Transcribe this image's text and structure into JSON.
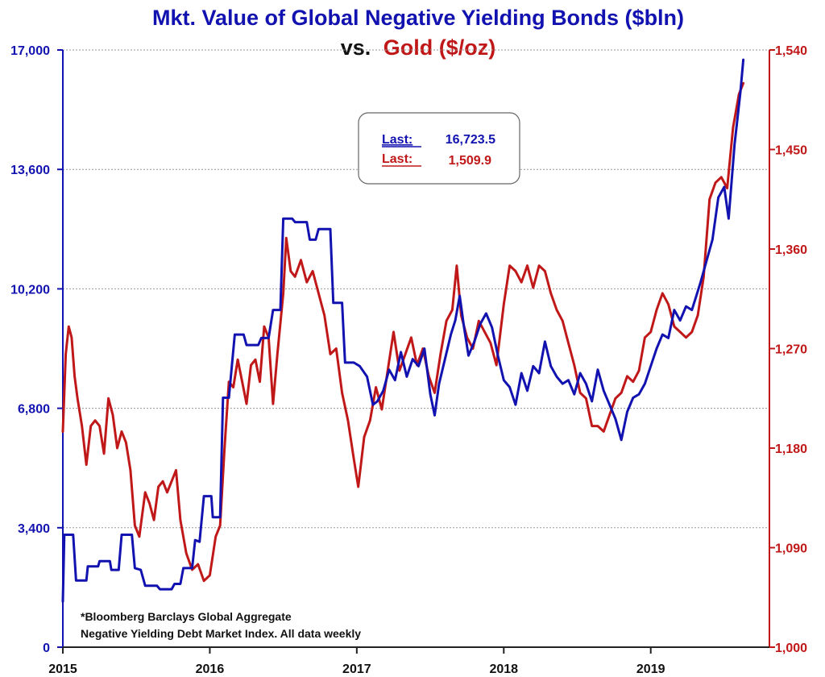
{
  "chart_data": {
    "type": "line",
    "title": "Mkt. Value of Global Negative Yielding Bonds ($bln)",
    "subtitle_prefix": "vs.",
    "subtitle_series": "Gold ($/oz)",
    "colors": {
      "bonds": "#1212b0",
      "gold": "#c01818",
      "grid": "#9a9a9a"
    },
    "x_ticks": [
      "2015",
      "2016",
      "2017",
      "2018",
      "2019"
    ],
    "x_tick_values": [
      2015.0,
      2016.0,
      2017.0,
      2018.0,
      2019.0
    ],
    "xlim": [
      2015.0,
      2019.78
    ],
    "y_left": {
      "lim": [
        0,
        17000
      ],
      "ticks": [
        0,
        3400,
        6800,
        10200,
        13600,
        17000
      ],
      "tick_labels": [
        "0",
        "3,400",
        "6,800",
        "10,200",
        "13,600",
        "17,000"
      ]
    },
    "y_right": {
      "lim": [
        1000,
        1540
      ],
      "ticks": [
        1000,
        1090,
        1180,
        1270,
        1360,
        1450,
        1540
      ],
      "tick_labels": [
        "1,000",
        "1,090",
        "1,180",
        "1,270",
        "1,360",
        "1,450",
        "1,540"
      ]
    },
    "grid": true,
    "legend_box": {
      "rows": [
        {
          "label": "Last:",
          "value": "16,723.5"
        },
        {
          "label": "Last:",
          "value": "1,509.9"
        }
      ]
    },
    "footnote": [
      "*Bloomberg Barclays Global Aggregate",
      "Negative Yielding  Debt Market Index. All data weekly"
    ],
    "series": [
      {
        "axis": "left",
        "points": [
          [
            2015.0,
            1300
          ],
          [
            2015.01,
            3200
          ],
          [
            2015.07,
            3200
          ],
          [
            2015.09,
            1900
          ],
          [
            2015.16,
            1900
          ],
          [
            2015.17,
            2300
          ],
          [
            2015.24,
            2300
          ],
          [
            2015.25,
            2450
          ],
          [
            2015.32,
            2450
          ],
          [
            2015.33,
            2200
          ],
          [
            2015.38,
            2200
          ],
          [
            2015.4,
            3200
          ],
          [
            2015.47,
            3200
          ],
          [
            2015.49,
            2250
          ],
          [
            2015.53,
            2200
          ],
          [
            2015.56,
            1750
          ],
          [
            2015.64,
            1750
          ],
          [
            2015.66,
            1650
          ],
          [
            2015.74,
            1650
          ],
          [
            2015.76,
            1800
          ],
          [
            2015.8,
            1800
          ],
          [
            2015.82,
            2250
          ],
          [
            2015.88,
            2250
          ],
          [
            2015.9,
            3050
          ],
          [
            2015.93,
            3000
          ],
          [
            2015.96,
            4300
          ],
          [
            2016.01,
            4300
          ],
          [
            2016.02,
            3700
          ],
          [
            2016.07,
            3700
          ],
          [
            2016.09,
            7100
          ],
          [
            2016.13,
            7100
          ],
          [
            2016.17,
            8900
          ],
          [
            2016.23,
            8900
          ],
          [
            2016.25,
            8600
          ],
          [
            2016.33,
            8600
          ],
          [
            2016.35,
            8800
          ],
          [
            2016.4,
            8800
          ],
          [
            2016.43,
            9600
          ],
          [
            2016.48,
            9600
          ],
          [
            2016.5,
            12200
          ],
          [
            2016.56,
            12200
          ],
          [
            2016.58,
            12100
          ],
          [
            2016.66,
            12100
          ],
          [
            2016.68,
            11600
          ],
          [
            2016.72,
            11600
          ],
          [
            2016.74,
            11900
          ],
          [
            2016.82,
            11900
          ],
          [
            2016.84,
            9800
          ],
          [
            2016.9,
            9800
          ],
          [
            2016.92,
            8100
          ],
          [
            2016.98,
            8100
          ],
          [
            2017.02,
            8000
          ],
          [
            2017.07,
            7700
          ],
          [
            2017.11,
            6900
          ],
          [
            2017.14,
            7000
          ],
          [
            2017.18,
            7300
          ],
          [
            2017.22,
            7900
          ],
          [
            2017.26,
            7600
          ],
          [
            2017.3,
            8400
          ],
          [
            2017.34,
            7700
          ],
          [
            2017.38,
            8200
          ],
          [
            2017.42,
            8000
          ],
          [
            2017.46,
            8500
          ],
          [
            2017.5,
            7200
          ],
          [
            2017.53,
            6600
          ],
          [
            2017.56,
            7500
          ],
          [
            2017.6,
            8200
          ],
          [
            2017.64,
            8900
          ],
          [
            2017.67,
            9300
          ],
          [
            2017.7,
            10000
          ],
          [
            2017.73,
            9100
          ],
          [
            2017.76,
            8300
          ],
          [
            2017.8,
            8700
          ],
          [
            2017.84,
            9200
          ],
          [
            2017.88,
            9500
          ],
          [
            2017.92,
            9100
          ],
          [
            2017.96,
            8300
          ],
          [
            2018.0,
            7600
          ],
          [
            2018.04,
            7400
          ],
          [
            2018.08,
            6900
          ],
          [
            2018.12,
            7800
          ],
          [
            2018.16,
            7300
          ],
          [
            2018.2,
            8000
          ],
          [
            2018.24,
            7800
          ],
          [
            2018.28,
            8700
          ],
          [
            2018.32,
            8000
          ],
          [
            2018.36,
            7700
          ],
          [
            2018.4,
            7500
          ],
          [
            2018.44,
            7600
          ],
          [
            2018.48,
            7200
          ],
          [
            2018.52,
            7800
          ],
          [
            2018.56,
            7500
          ],
          [
            2018.6,
            7000
          ],
          [
            2018.64,
            7900
          ],
          [
            2018.68,
            7300
          ],
          [
            2018.72,
            6900
          ],
          [
            2018.76,
            6500
          ],
          [
            2018.8,
            5900
          ],
          [
            2018.84,
            6700
          ],
          [
            2018.88,
            7100
          ],
          [
            2018.92,
            7200
          ],
          [
            2018.96,
            7500
          ],
          [
            2019.0,
            8000
          ],
          [
            2019.04,
            8500
          ],
          [
            2019.08,
            8900
          ],
          [
            2019.12,
            8800
          ],
          [
            2019.16,
            9600
          ],
          [
            2019.2,
            9300
          ],
          [
            2019.24,
            9700
          ],
          [
            2019.28,
            9600
          ],
          [
            2019.31,
            10000
          ],
          [
            2019.34,
            10400
          ],
          [
            2019.38,
            11000
          ],
          [
            2019.42,
            11600
          ],
          [
            2019.46,
            12800
          ],
          [
            2019.5,
            13100
          ],
          [
            2019.53,
            12200
          ],
          [
            2019.57,
            14300
          ],
          [
            2019.61,
            15800
          ],
          [
            2019.63,
            16723.5
          ]
        ]
      },
      {
        "axis": "right",
        "points": [
          [
            2015.0,
            1195
          ],
          [
            2015.02,
            1265
          ],
          [
            2015.04,
            1290
          ],
          [
            2015.06,
            1280
          ],
          [
            2015.08,
            1245
          ],
          [
            2015.1,
            1225
          ],
          [
            2015.13,
            1200
          ],
          [
            2015.16,
            1165
          ],
          [
            2015.19,
            1200
          ],
          [
            2015.22,
            1205
          ],
          [
            2015.25,
            1200
          ],
          [
            2015.28,
            1175
          ],
          [
            2015.31,
            1225
          ],
          [
            2015.34,
            1210
          ],
          [
            2015.37,
            1180
          ],
          [
            2015.4,
            1195
          ],
          [
            2015.43,
            1185
          ],
          [
            2015.46,
            1160
          ],
          [
            2015.49,
            1110
          ],
          [
            2015.52,
            1100
          ],
          [
            2015.56,
            1140
          ],
          [
            2015.59,
            1130
          ],
          [
            2015.62,
            1115
          ],
          [
            2015.65,
            1145
          ],
          [
            2015.68,
            1150
          ],
          [
            2015.71,
            1140
          ],
          [
            2015.74,
            1150
          ],
          [
            2015.77,
            1160
          ],
          [
            2015.8,
            1115
          ],
          [
            2015.84,
            1085
          ],
          [
            2015.88,
            1070
          ],
          [
            2015.92,
            1075
          ],
          [
            2015.96,
            1060
          ],
          [
            2016.0,
            1065
          ],
          [
            2016.04,
            1100
          ],
          [
            2016.07,
            1110
          ],
          [
            2016.1,
            1180
          ],
          [
            2016.13,
            1240
          ],
          [
            2016.16,
            1235
          ],
          [
            2016.19,
            1260
          ],
          [
            2016.22,
            1240
          ],
          [
            2016.25,
            1220
          ],
          [
            2016.28,
            1255
          ],
          [
            2016.31,
            1260
          ],
          [
            2016.34,
            1240
          ],
          [
            2016.37,
            1290
          ],
          [
            2016.4,
            1280
          ],
          [
            2016.43,
            1220
          ],
          [
            2016.46,
            1265
          ],
          [
            2016.5,
            1320
          ],
          [
            2016.52,
            1370
          ],
          [
            2016.55,
            1340
          ],
          [
            2016.58,
            1335
          ],
          [
            2016.62,
            1350
          ],
          [
            2016.66,
            1330
          ],
          [
            2016.7,
            1340
          ],
          [
            2016.74,
            1320
          ],
          [
            2016.78,
            1300
          ],
          [
            2016.82,
            1265
          ],
          [
            2016.86,
            1270
          ],
          [
            2016.9,
            1230
          ],
          [
            2016.94,
            1205
          ],
          [
            2016.98,
            1170
          ],
          [
            2017.01,
            1145
          ],
          [
            2017.05,
            1190
          ],
          [
            2017.09,
            1205
          ],
          [
            2017.13,
            1235
          ],
          [
            2017.17,
            1215
          ],
          [
            2017.21,
            1250
          ],
          [
            2017.25,
            1285
          ],
          [
            2017.29,
            1250
          ],
          [
            2017.33,
            1265
          ],
          [
            2017.37,
            1280
          ],
          [
            2017.41,
            1255
          ],
          [
            2017.45,
            1270
          ],
          [
            2017.49,
            1245
          ],
          [
            2017.53,
            1230
          ],
          [
            2017.57,
            1265
          ],
          [
            2017.61,
            1295
          ],
          [
            2017.65,
            1305
          ],
          [
            2017.68,
            1345
          ],
          [
            2017.71,
            1300
          ],
          [
            2017.75,
            1280
          ],
          [
            2017.79,
            1270
          ],
          [
            2017.83,
            1295
          ],
          [
            2017.87,
            1285
          ],
          [
            2017.91,
            1275
          ],
          [
            2017.95,
            1255
          ],
          [
            2018.0,
            1310
          ],
          [
            2018.04,
            1345
          ],
          [
            2018.08,
            1340
          ],
          [
            2018.12,
            1330
          ],
          [
            2018.16,
            1345
          ],
          [
            2018.2,
            1325
          ],
          [
            2018.24,
            1345
          ],
          [
            2018.28,
            1340
          ],
          [
            2018.32,
            1320
          ],
          [
            2018.36,
            1305
          ],
          [
            2018.4,
            1295
          ],
          [
            2018.44,
            1275
          ],
          [
            2018.48,
            1255
          ],
          [
            2018.52,
            1230
          ],
          [
            2018.56,
            1225
          ],
          [
            2018.6,
            1200
          ],
          [
            2018.64,
            1200
          ],
          [
            2018.68,
            1195
          ],
          [
            2018.72,
            1210
          ],
          [
            2018.76,
            1225
          ],
          [
            2018.8,
            1230
          ],
          [
            2018.84,
            1245
          ],
          [
            2018.88,
            1240
          ],
          [
            2018.92,
            1250
          ],
          [
            2018.96,
            1280
          ],
          [
            2019.0,
            1285
          ],
          [
            2019.04,
            1305
          ],
          [
            2019.08,
            1320
          ],
          [
            2019.12,
            1310
          ],
          [
            2019.16,
            1290
          ],
          [
            2019.2,
            1285
          ],
          [
            2019.24,
            1280
          ],
          [
            2019.28,
            1285
          ],
          [
            2019.32,
            1300
          ],
          [
            2019.36,
            1335
          ],
          [
            2019.4,
            1405
          ],
          [
            2019.44,
            1420
          ],
          [
            2019.48,
            1425
          ],
          [
            2019.52,
            1415
          ],
          [
            2019.56,
            1470
          ],
          [
            2019.6,
            1500
          ],
          [
            2019.63,
            1509.9
          ]
        ]
      }
    ]
  }
}
